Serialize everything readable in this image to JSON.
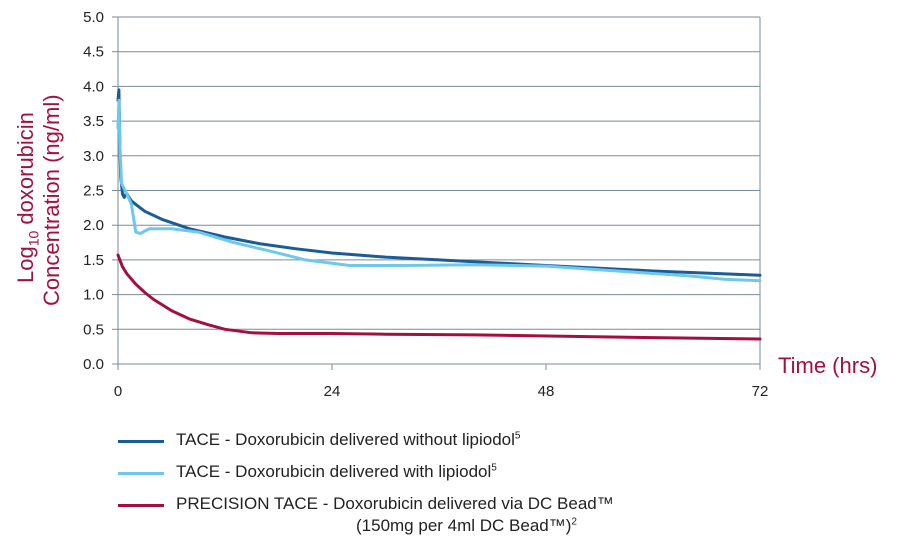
{
  "chart_data": {
    "type": "line",
    "ylabel_line1_prefix": "Log",
    "ylabel_line1_sub": "10",
    "ylabel_line1_suffix": " doxorubicin",
    "ylabel_line2": "Concentration (ng/ml)",
    "xlabel": "Time (hrs)",
    "xlim": [
      0,
      72
    ],
    "ylim": [
      0,
      5
    ],
    "xticks": [
      0,
      24,
      48,
      72
    ],
    "yticks": [
      "0.0",
      "0.5",
      "1.0",
      "1.5",
      "2.0",
      "2.5",
      "3.0",
      "3.5",
      "4.0",
      "4.5",
      "5.0"
    ],
    "grid": "horizontal",
    "legend_position": "bottom",
    "series": [
      {
        "name": "TACE - Doxorubicin delivered without lipiodol",
        "name_sup": "5",
        "color": "#1a5c96",
        "points": [
          [
            0,
            3.8
          ],
          [
            0.1,
            3.95
          ],
          [
            0.2,
            3.2
          ],
          [
            0.3,
            2.7
          ],
          [
            0.5,
            2.45
          ],
          [
            0.7,
            2.4
          ],
          [
            0.9,
            2.45
          ],
          [
            1.0,
            2.45
          ],
          [
            1.5,
            2.35
          ],
          [
            2,
            2.3
          ],
          [
            3,
            2.2
          ],
          [
            5,
            2.08
          ],
          [
            8,
            1.95
          ],
          [
            12,
            1.83
          ],
          [
            16,
            1.73
          ],
          [
            20,
            1.66
          ],
          [
            24,
            1.6
          ],
          [
            30,
            1.54
          ],
          [
            36,
            1.5
          ],
          [
            42,
            1.46
          ],
          [
            48,
            1.42
          ],
          [
            54,
            1.38
          ],
          [
            60,
            1.34
          ],
          [
            66,
            1.31
          ],
          [
            72,
            1.28
          ]
        ]
      },
      {
        "name": "TACE - Doxorubicin delivered with lipiodol",
        "name_sup": "5",
        "color": "#6ec8ec",
        "points": [
          [
            0,
            3.4
          ],
          [
            0.1,
            3.8
          ],
          [
            0.2,
            3.2
          ],
          [
            0.4,
            2.6
          ],
          [
            0.6,
            2.55
          ],
          [
            1.0,
            2.45
          ],
          [
            1.5,
            2.3
          ],
          [
            2,
            1.9
          ],
          [
            2.5,
            1.88
          ],
          [
            3.5,
            1.95
          ],
          [
            6,
            1.95
          ],
          [
            9,
            1.9
          ],
          [
            13,
            1.75
          ],
          [
            17,
            1.63
          ],
          [
            21,
            1.5
          ],
          [
            26,
            1.42
          ],
          [
            32,
            1.42
          ],
          [
            40,
            1.43
          ],
          [
            48,
            1.41
          ],
          [
            56,
            1.34
          ],
          [
            64,
            1.27
          ],
          [
            68,
            1.22
          ],
          [
            72,
            1.2
          ]
        ]
      },
      {
        "name": "PRECISION TACE - Doxorubicin delivered via DC Bead™",
        "name_line2": "(150mg per 4ml DC Bead™)",
        "name_sup": "2",
        "color": "#a3103f",
        "points": [
          [
            0,
            1.57
          ],
          [
            0.5,
            1.4
          ],
          [
            1,
            1.3
          ],
          [
            2,
            1.15
          ],
          [
            3,
            1.03
          ],
          [
            4,
            0.93
          ],
          [
            6,
            0.77
          ],
          [
            8,
            0.65
          ],
          [
            10,
            0.57
          ],
          [
            12,
            0.5
          ],
          [
            15,
            0.45
          ],
          [
            18,
            0.44
          ],
          [
            24,
            0.44
          ],
          [
            30,
            0.43
          ],
          [
            40,
            0.42
          ],
          [
            50,
            0.4
          ],
          [
            60,
            0.38
          ],
          [
            72,
            0.36
          ]
        ]
      }
    ]
  }
}
